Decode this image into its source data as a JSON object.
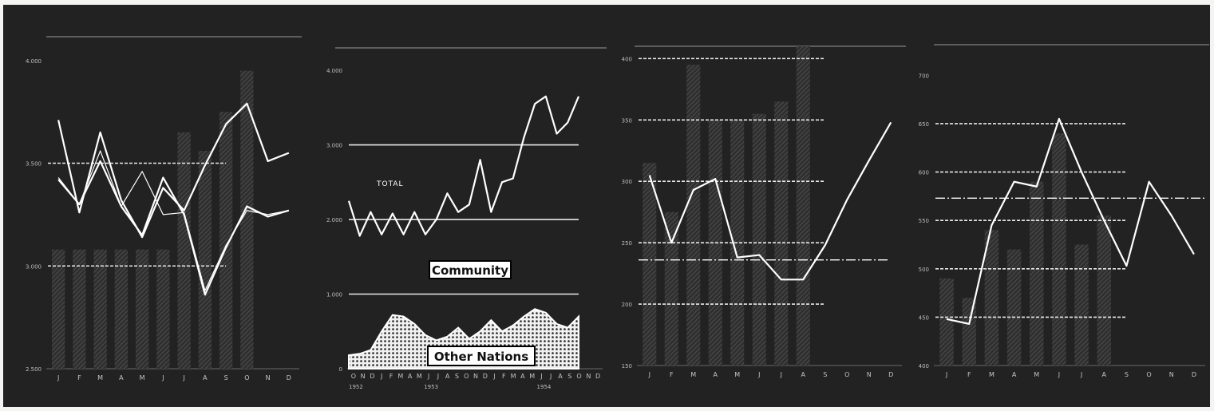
{
  "chart_data": [
    {
      "type": "line",
      "ylim": [
        2500,
        4100
      ],
      "yticks": [
        {
          "v": 2500,
          "t": "2.500"
        },
        {
          "v": 3000,
          "t": "3.000"
        },
        {
          "v": 3500,
          "t": "3.500"
        },
        {
          "v": 4000,
          "t": "4.000"
        }
      ],
      "categories": [
        "J",
        "F",
        "M",
        "A",
        "M",
        "J",
        "J",
        "A",
        "S",
        "O",
        "N",
        "D"
      ],
      "bars": [
        3080,
        3080,
        3080,
        3080,
        3080,
        3080,
        3650,
        3560,
        3750,
        3950,
        null,
        null
      ],
      "ref_values": [
        3000,
        3500
      ],
      "series": [
        {
          "values": [
            3710,
            3260,
            3650,
            3320,
            3140,
            3380,
            3270,
            3490,
            3690,
            3790,
            3510,
            3550
          ]
        },
        {
          "values": [
            3420,
            3300,
            3510,
            3290,
            3150,
            3430,
            3250,
            2860,
            3090,
            3290,
            3240,
            3270
          ]
        },
        {
          "values": [
            3430,
            3300,
            3560,
            3290,
            3460,
            3250,
            3260,
            2880,
            3100,
            3270,
            3250,
            3270
          ]
        }
      ]
    },
    {
      "type": "area",
      "ylim": [
        0,
        4300
      ],
      "yticks": [
        {
          "v": 0,
          "t": "0"
        },
        {
          "v": 1000,
          "t": "1.000"
        },
        {
          "v": 2000,
          "t": "2.000"
        },
        {
          "v": 3000,
          "t": "3.000"
        },
        {
          "v": 4000,
          "t": "4.000"
        }
      ],
      "x_month_labels": [
        "O",
        "N",
        "D",
        "J",
        "F",
        "M",
        "A",
        "M",
        "J",
        "J",
        "A",
        "S",
        "O",
        "N",
        "D",
        "J",
        "F",
        "M",
        "A",
        "M",
        "J",
        "J",
        "A",
        "S",
        "O",
        "N",
        "D"
      ],
      "year_labels": [
        {
          "i": 0,
          "t": "1952"
        },
        {
          "i": 8,
          "t": "1953"
        },
        {
          "i": 20,
          "t": "1954"
        }
      ],
      "ref_values": [
        1000,
        2000,
        3000
      ],
      "annotations": {
        "total": "TOTAL",
        "community": "Community",
        "other_nations": "Other Nations"
      },
      "series": [
        {
          "name": "TOTAL",
          "values": [
            2250,
            1780,
            2100,
            1800,
            2080,
            1800,
            2100,
            1800,
            2000,
            2350,
            2100,
            2200,
            2800,
            2100,
            2500,
            2550,
            3100,
            3550,
            3650,
            3150,
            3300,
            3650
          ]
        },
        {
          "name": "Other Nations",
          "values": [
            180,
            200,
            250,
            500,
            720,
            700,
            600,
            450,
            380,
            430,
            550,
            400,
            500,
            650,
            500,
            580,
            700,
            800,
            750,
            600,
            550,
            700
          ]
        }
      ]
    },
    {
      "type": "line",
      "ylim": [
        150,
        410
      ],
      "yticks": [
        {
          "v": 150,
          "t": "150"
        },
        {
          "v": 200,
          "t": "200"
        },
        {
          "v": 250,
          "t": "250"
        },
        {
          "v": 300,
          "t": "300"
        },
        {
          "v": 350,
          "t": "350"
        },
        {
          "v": 400,
          "t": "400"
        }
      ],
      "categories": [
        "J",
        "F",
        "M",
        "A",
        "M",
        "J",
        "J",
        "A",
        "S",
        "O",
        "N",
        "D"
      ],
      "bars": [
        315,
        275,
        395,
        350,
        350,
        355,
        365,
        410,
        null,
        null,
        null,
        null
      ],
      "ref_values": [
        200,
        250,
        300,
        350,
        400
      ],
      "average": 236,
      "series": [
        {
          "values": [
            305,
            250,
            293,
            302,
            238,
            240,
            220,
            220,
            248,
            285,
            317,
            348
          ]
        }
      ]
    },
    {
      "type": "line",
      "ylim": [
        400,
        730
      ],
      "yticks": [
        {
          "v": 400,
          "t": "400"
        },
        {
          "v": 450,
          "t": "450"
        },
        {
          "v": 500,
          "t": "500"
        },
        {
          "v": 550,
          "t": "550"
        },
        {
          "v": 600,
          "t": "600"
        },
        {
          "v": 650,
          "t": "650"
        },
        {
          "v": 700,
          "t": "700"
        }
      ],
      "categories": [
        "J",
        "F",
        "M",
        "A",
        "M",
        "J",
        "J",
        "A",
        "S",
        "O",
        "N",
        "D"
      ],
      "bars": [
        490,
        470,
        540,
        520,
        590,
        640,
        525,
        555,
        null,
        null,
        null,
        null
      ],
      "ref_values": [
        450,
        500,
        550,
        600,
        650
      ],
      "average": 573,
      "series": [
        {
          "values": [
            448,
            443,
            545,
            590,
            585,
            655,
            600,
            550,
            503,
            590,
            555,
            515
          ]
        }
      ]
    }
  ]
}
